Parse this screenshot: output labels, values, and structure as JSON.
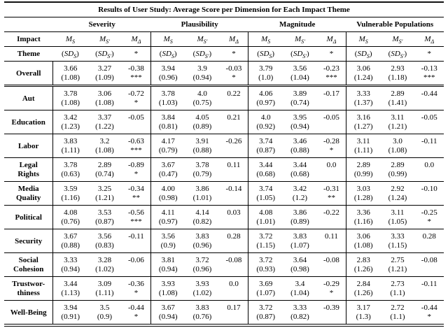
{
  "colors": {
    "background": "#ffffff",
    "text": "#000000",
    "rule": "#000000"
  },
  "table": {
    "title": "Results of User Study: Average Score per Dimension for Each Impact Theme",
    "corner": [
      "Impact",
      "Theme"
    ],
    "group_labels": [
      "Severity",
      "Plausibility",
      "Magnitude",
      "Vulnerable Populations"
    ],
    "stat_headers": {
      "mean_s": {
        "base": "M",
        "sub": "S"
      },
      "mean_s_prime": {
        "base": "M",
        "sub": "S′"
      },
      "mean_delta": {
        "base": "M",
        "sub": "Δ"
      },
      "sd_s": {
        "base": "SD",
        "sub": "S",
        "parens": true
      },
      "sd_s_prime": {
        "base": "SD",
        "sub": "S′",
        "parens": true
      },
      "significance": "*"
    },
    "rows": [
      {
        "theme": [
          "Overall"
        ],
        "groups": [
          [
            "3.66",
            "(1.08)",
            "3.27",
            "(1.09)",
            "-0.38",
            "***"
          ],
          [
            "3.94",
            "(0.96)",
            "3.9",
            "(0.94)",
            "-0.03",
            "*"
          ],
          [
            "3.79",
            "(1.0)",
            "3.56",
            "(1.04)",
            "-0.23",
            "***"
          ],
          [
            "3.06",
            "(1.24)",
            "2.93",
            "(1.18)",
            "-0.13",
            "***"
          ]
        ]
      },
      {
        "theme": [
          "Aut"
        ],
        "groups": [
          [
            "3.78",
            "(1.08)",
            "3.06",
            "(1.08)",
            "-0.72",
            "*"
          ],
          [
            "3.78",
            "(1.03)",
            "4.0",
            "(0.75)",
            "0.22",
            ""
          ],
          [
            "4.06",
            "(0.97)",
            "3.89",
            "(0.74)",
            "-0.17",
            ""
          ],
          [
            "3.33",
            "(1.37)",
            "2.89",
            "(1.41)",
            "-0.44",
            ""
          ]
        ]
      },
      {
        "theme": [
          "Education"
        ],
        "groups": [
          [
            "3.42",
            "(1.23)",
            "3.37",
            "(1.22)",
            "-0.05",
            ""
          ],
          [
            "3.84",
            "(0.81)",
            "4.05",
            "(0.89)",
            "0.21",
            ""
          ],
          [
            "4.0",
            "(0.92)",
            "3.95",
            "(0.94)",
            "-0.05",
            ""
          ],
          [
            "3.16",
            "(1.27)",
            "3.11",
            "(1.21)",
            "-0.05",
            ""
          ]
        ]
      },
      {
        "theme": [
          "Labor"
        ],
        "groups": [
          [
            "3.83",
            "(1.11)",
            "3.2",
            "(1.08)",
            "-0.63",
            "***"
          ],
          [
            "4.17",
            "(0.79)",
            "3.91",
            "(0.88)",
            "-0.26",
            ""
          ],
          [
            "3.74",
            "(0.87)",
            "3.46",
            "(0.88)",
            "-0.28",
            "*"
          ],
          [
            "3.11",
            "(1.11)",
            "3.0",
            "(1.08)",
            "-0.11",
            ""
          ]
        ]
      },
      {
        "theme": [
          "Legal",
          "Rights"
        ],
        "groups": [
          [
            "3.78",
            "(0.63)",
            "2.89",
            "(0.74)",
            "-0.89",
            "*"
          ],
          [
            "3.67",
            "(0.47)",
            "3.78",
            "(0.79)",
            "0.11",
            ""
          ],
          [
            "3.44",
            "(0.68)",
            "3.44",
            "(0.68)",
            "0.0",
            ""
          ],
          [
            "2.89",
            "(0.99)",
            "2.89",
            "(0.99)",
            "0.0",
            ""
          ]
        ]
      },
      {
        "theme": [
          "Media",
          "Quality"
        ],
        "groups": [
          [
            "3.59",
            "(1.16)",
            "3.25",
            "(1.21)",
            "-0.34",
            "**"
          ],
          [
            "4.00",
            "(0.98)",
            "3.86",
            "(1.01)",
            "-0.14",
            ""
          ],
          [
            "3.74",
            "(1.05)",
            "3.42",
            "(1.2)",
            "-0.31",
            "**"
          ],
          [
            "3.03",
            "(1.28)",
            "2.92",
            "(1.24)",
            "-0.10",
            ""
          ]
        ]
      },
      {
        "theme": [
          "Political"
        ],
        "groups": [
          [
            "4.08",
            "(0.76)",
            "3.53",
            "(0.87)",
            "-0.56",
            "***"
          ],
          [
            "4.11",
            "(0.97)",
            "4.14",
            "(0.82)",
            "0.03",
            ""
          ],
          [
            "4.08",
            "(1.01)",
            "3.86",
            "(0.89)",
            "-0.22",
            ""
          ],
          [
            "3.36",
            "(1.16)",
            "3.11",
            "(1.05)",
            "-0.25",
            "*"
          ]
        ]
      },
      {
        "theme": [
          "Security"
        ],
        "groups": [
          [
            "3.67",
            "(0.88)",
            "3.56",
            "(0.83)",
            "-0.11",
            ""
          ],
          [
            "3.56",
            "(0.9)",
            "3.83",
            "(0.96)",
            "0.28",
            ""
          ],
          [
            "3.72",
            "(1.15)",
            "3.83",
            "(1.07)",
            "0.11",
            ""
          ],
          [
            "3.06",
            "(1.08)",
            "3.33",
            "(1.15)",
            "0.28",
            ""
          ]
        ]
      },
      {
        "theme": [
          "Social",
          "Cohesion"
        ],
        "groups": [
          [
            "3.33",
            "(0.94)",
            "3.28",
            "(1.02)",
            "-0.06",
            ""
          ],
          [
            "3.81",
            "(0.94)",
            "3.72",
            "(0.96)",
            "-0.08",
            ""
          ],
          [
            "3.72",
            "(0.93)",
            "3.64",
            "(0.98)",
            "-0.08",
            ""
          ],
          [
            "2.83",
            "(1.26)",
            "2.75",
            "(1.21)",
            "-0.08",
            ""
          ]
        ]
      },
      {
        "theme": [
          "Trustwor-",
          "thiness"
        ],
        "groups": [
          [
            "3.44",
            "(1.13)",
            "3.09",
            "(1.11)",
            "-0.36",
            "*"
          ],
          [
            "3.93",
            "(1.08)",
            "3.93",
            "(1.02)",
            "0.0",
            ""
          ],
          [
            "3.69",
            "(1.07)",
            "3.4",
            "(1.04)",
            "-0.29",
            "*"
          ],
          [
            "2.84",
            "(1.26)",
            "2.73",
            "(1.1)",
            "-0.11",
            ""
          ]
        ]
      },
      {
        "theme": [
          "Well-Being"
        ],
        "groups": [
          [
            "3.94",
            "(0.91)",
            "3.5",
            "(0.9)",
            "-0.44",
            "*"
          ],
          [
            "3.67",
            "(0.94)",
            "3.83",
            "(0.76)",
            "0.17",
            ""
          ],
          [
            "3.72",
            "(0.87)",
            "3.33",
            "(0.82)",
            "-0.39",
            ""
          ],
          [
            "3.17",
            "(1.3)",
            "2.72",
            "(1.1)",
            "-0.44",
            "*"
          ]
        ]
      }
    ]
  }
}
